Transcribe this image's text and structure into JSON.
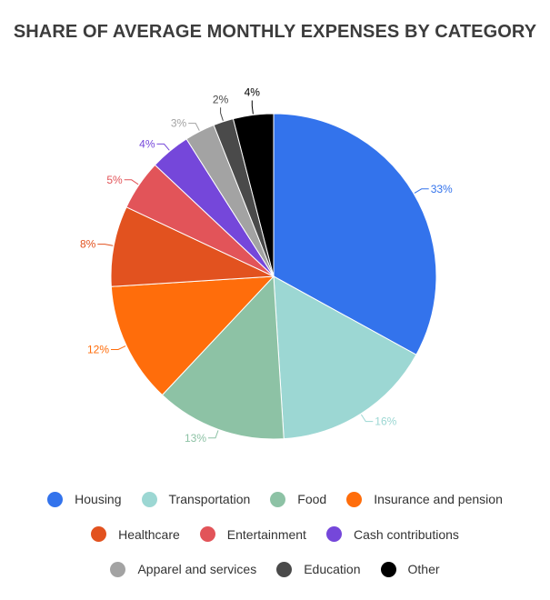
{
  "chart_data": {
    "type": "pie",
    "title": "SHARE OF AVERAGE MONTHLY EXPENSES BY CATEGORY",
    "value_suffix": "%",
    "legend_position": "bottom",
    "slices": [
      {
        "label": "Housing",
        "value": 33,
        "color": "#3373EC"
      },
      {
        "label": "Transportation",
        "value": 16,
        "color": "#9CD7D3"
      },
      {
        "label": "Food",
        "value": 13,
        "color": "#8DC2A5"
      },
      {
        "label": "Insurance and pension",
        "value": 12,
        "color": "#FF6D0B"
      },
      {
        "label": "Healthcare",
        "value": 8,
        "color": "#E2521F"
      },
      {
        "label": "Entertainment",
        "value": 5,
        "color": "#E25459"
      },
      {
        "label": "Cash contributions",
        "value": 4,
        "color": "#7547DA"
      },
      {
        "label": "Apparel and services",
        "value": 3,
        "color": "#A3A3A3"
      },
      {
        "label": "Education",
        "value": 2,
        "color": "#4A4A4A"
      },
      {
        "label": "Other",
        "value": 4,
        "color": "#000000"
      }
    ]
  }
}
